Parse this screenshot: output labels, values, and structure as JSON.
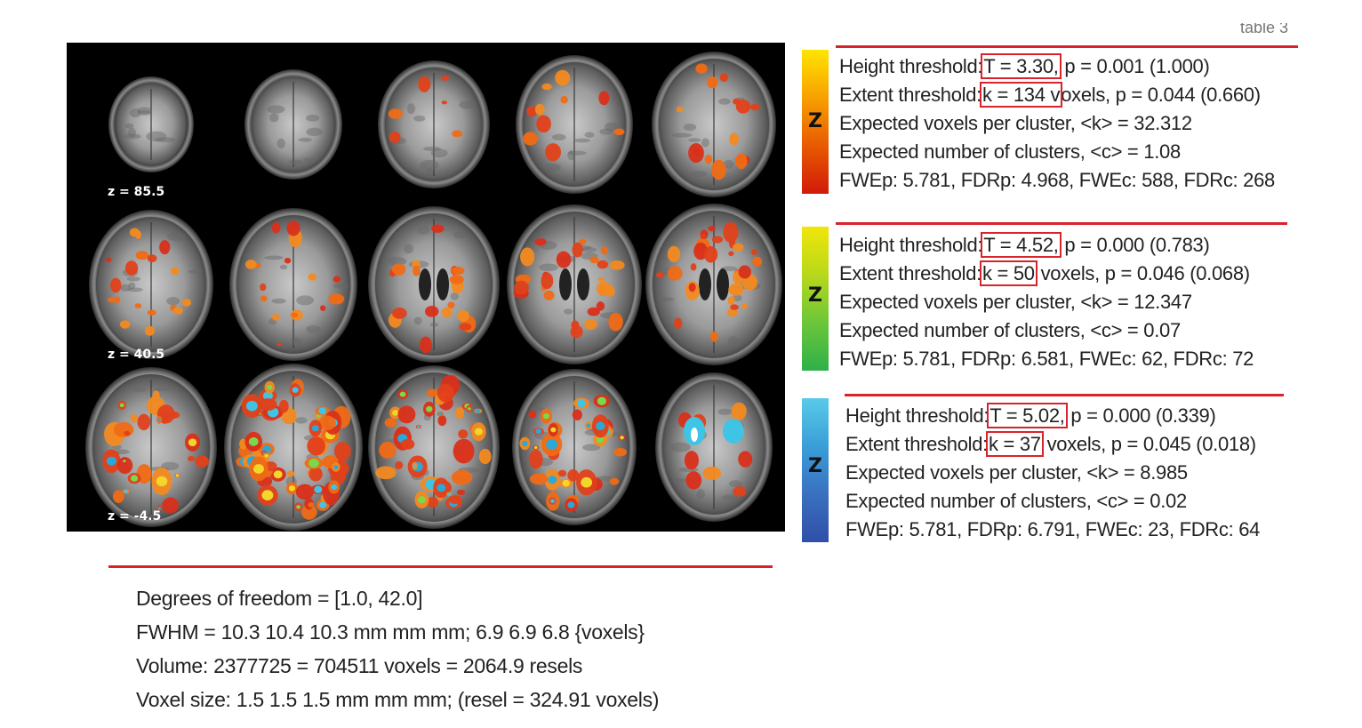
{
  "montage": {
    "slice_labels": [
      "z = 85.5",
      "z = 40.5",
      "z = -4.5"
    ]
  },
  "top_fragment": "table 3",
  "panels": [
    {
      "colormap": [
        "#ffe500",
        "#f8a000",
        "#e85a00",
        "#d21a0a"
      ],
      "z_icon": "Z",
      "height_label": "Height threshold:",
      "height_value": "T = 3.30,",
      "height_tail": "p = 0.001 (1.000)",
      "extent_label": "Extent threshold:",
      "extent_value": "k = 134 v",
      "extent_tail": "oxels, p = 0.044 (0.660)",
      "expected_voxels": "Expected voxels per cluster, <k> = 32.312",
      "expected_clusters": "Expected number of clusters, <c> = 1.08",
      "fwe": "FWEp: 5.781, FDRp: 4.968, FWEc: 588, FDRc: 268"
    },
    {
      "colormap": [
        "#f0e60a",
        "#b8d81a",
        "#6cc63a",
        "#2eb04a"
      ],
      "z_icon": "Z",
      "height_label": "Height threshold:",
      "height_value": "T = 4.52,",
      "height_tail": "p = 0.000 (0.783)",
      "extent_label": "Extent threshold:",
      "extent_value": "k = 50",
      "extent_tail": "voxels, p = 0.046 (0.068)",
      "expected_voxels": "Expected voxels per cluster, <k> = 12.347",
      "expected_clusters": "Expected number of clusters, <c> = 0.07",
      "fwe": "FWEp: 5.781, FDRp: 6.581, FWEc: 62, FDRc: 72"
    },
    {
      "colormap": [
        "#58cbe8",
        "#3a9ed8",
        "#3a70c0",
        "#2f4fa8"
      ],
      "z_icon": "Z",
      "height_label": "Height threshold:",
      "height_value": "T = 5.02,",
      "height_tail": "p = 0.000 (0.339)",
      "extent_label": "Extent threshold:",
      "extent_value": "k = 37",
      "extent_tail": "voxels, p = 0.045 (0.018)",
      "expected_voxels": "Expected voxels per cluster, <k> = 8.985",
      "expected_clusters": "Expected number of clusters, <c> = 0.02",
      "fwe": "FWEp: 5.781, FDRp: 6.791, FWEc: 23, FDRc: 64"
    }
  ],
  "stats": {
    "dof": "Degrees of freedom = [1.0, 42.0]",
    "fwhm": "FWHM = 10.3 10.4 10.3 mm mm mm; 6.9 6.9 6.8 {voxels}",
    "volume": "Volume: 2377725 = 704511 voxels = 2064.9 resels",
    "voxel_size": "Voxel size: 1.5 1.5 1.5 mm mm mm; (resel = 324.91 voxels)"
  }
}
